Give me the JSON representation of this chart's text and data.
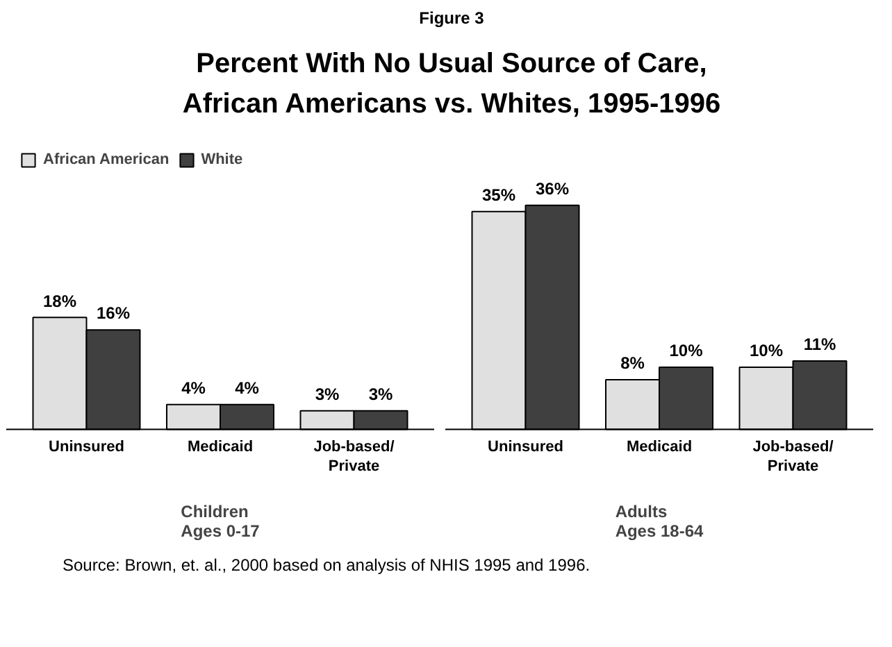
{
  "chart_data": [
    {
      "type": "bar",
      "title": "Percent With No Usual Source of Care,\nAfrican Americans vs. Whites, 1995-1996",
      "annotations": [
        "Figure 3",
        "Source:  Brown, et. al., 2000 based on analysis of NHIS 1995 and 1996."
      ],
      "xlabel": "Children\nAges 0-17",
      "categories": [
        "Uninsured",
        "Medicaid",
        "Job-based/\nPrivate"
      ],
      "legend": "top left",
      "series": [
        {
          "name": "African American",
          "color": "#e0e0e0",
          "values": [
            18,
            4,
            3
          ],
          "value_labels": [
            "18%",
            "4%",
            "3%"
          ]
        },
        {
          "name": "White",
          "color": "#404040",
          "values": [
            16,
            4,
            3
          ],
          "value_labels": [
            "16%",
            "4%",
            "3%"
          ]
        }
      ]
    },
    {
      "type": "bar",
      "xlabel": "Adults\nAges 18-64",
      "categories": [
        "Uninsured",
        "Medicaid",
        "Job-based/\nPrivate"
      ],
      "series": [
        {
          "color": "#e0e0e0",
          "values": [
            35,
            8,
            10
          ],
          "value_labels": [
            "35%",
            "8%",
            "10%"
          ]
        },
        {
          "color": "#404040",
          "values": [
            36,
            10,
            11
          ],
          "value_labels": [
            "36%",
            "10%",
            "11%"
          ]
        }
      ]
    }
  ]
}
